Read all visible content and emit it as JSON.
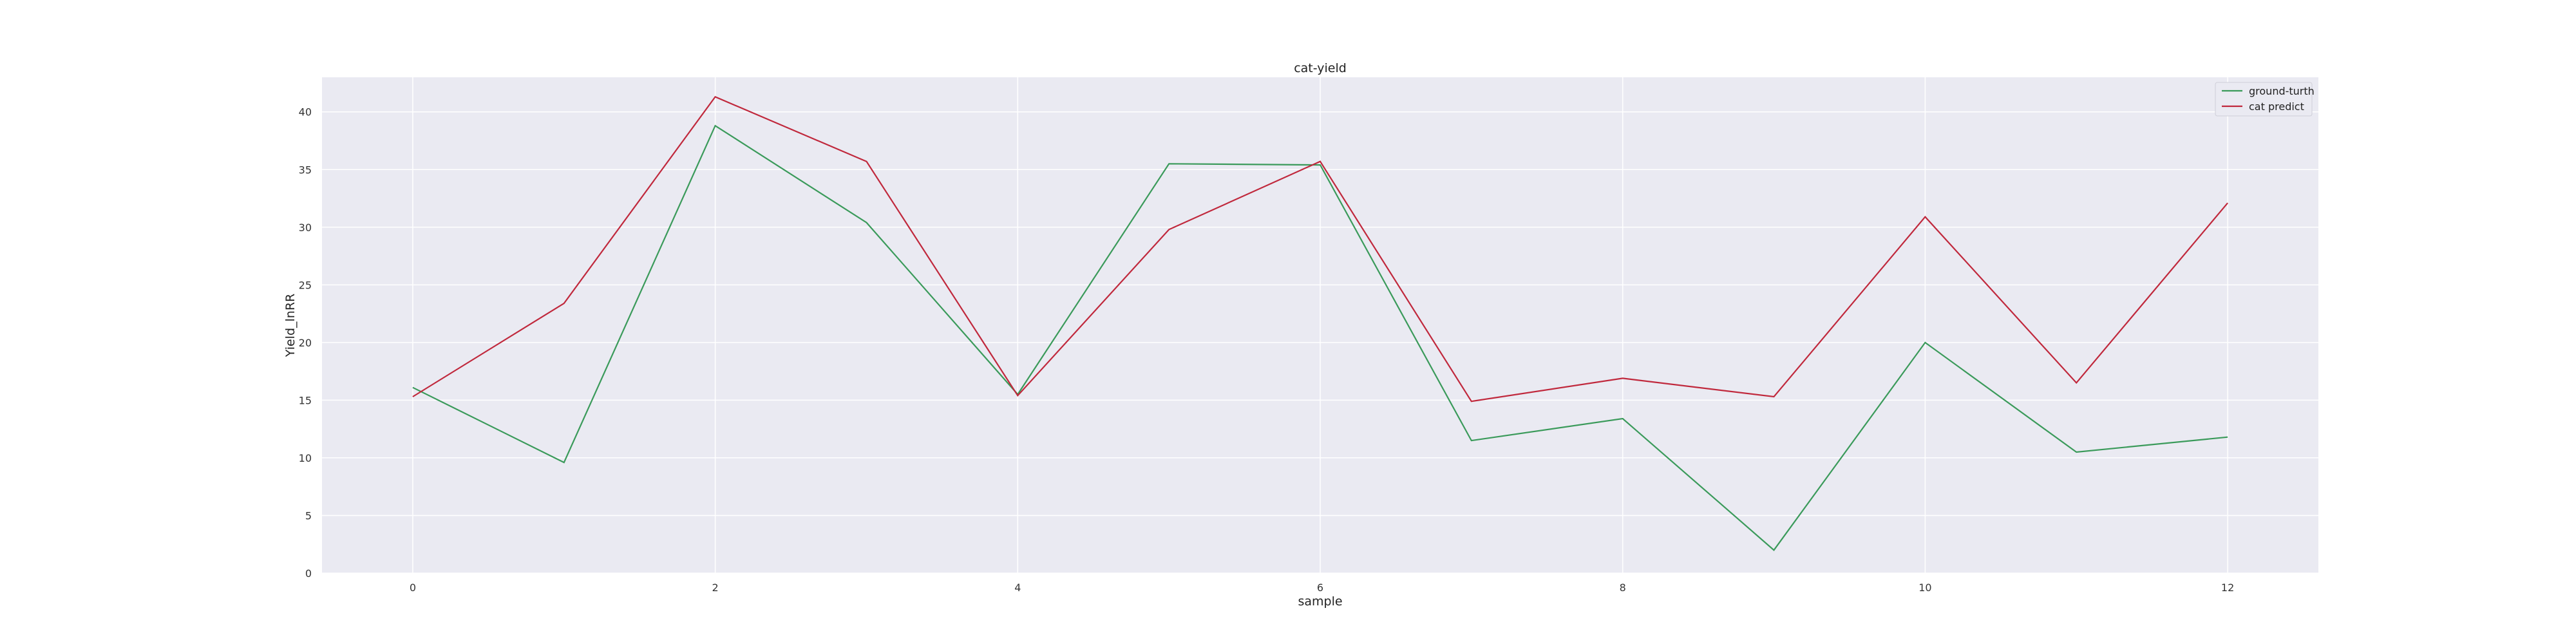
{
  "chart_data": {
    "type": "line",
    "title": "cat-yield",
    "xlabel": "sample",
    "ylabel": "Yield_lnRR",
    "x": [
      0,
      1,
      2,
      3,
      4,
      5,
      6,
      7,
      8,
      9,
      10,
      11,
      12
    ],
    "xticks": [
      0,
      2,
      4,
      6,
      8,
      10,
      12
    ],
    "yticks": [
      0,
      5,
      10,
      15,
      20,
      25,
      30,
      35,
      40
    ],
    "xlim": [
      -0.6,
      12.6
    ],
    "ylim": [
      0,
      43
    ],
    "grid": true,
    "legend_position": "top-right",
    "series": [
      {
        "name": "ground-turth",
        "color": "#3a9a5a",
        "values": [
          16.1,
          9.6,
          38.8,
          30.4,
          15.5,
          35.5,
          35.4,
          11.5,
          13.4,
          2.0,
          20.0,
          10.5,
          11.8
        ]
      },
      {
        "name": "cat predict",
        "color": "#c0283c",
        "values": [
          15.3,
          23.4,
          41.3,
          35.7,
          15.4,
          29.8,
          35.7,
          14.9,
          16.9,
          15.3,
          30.9,
          16.5,
          32.1
        ]
      }
    ]
  }
}
